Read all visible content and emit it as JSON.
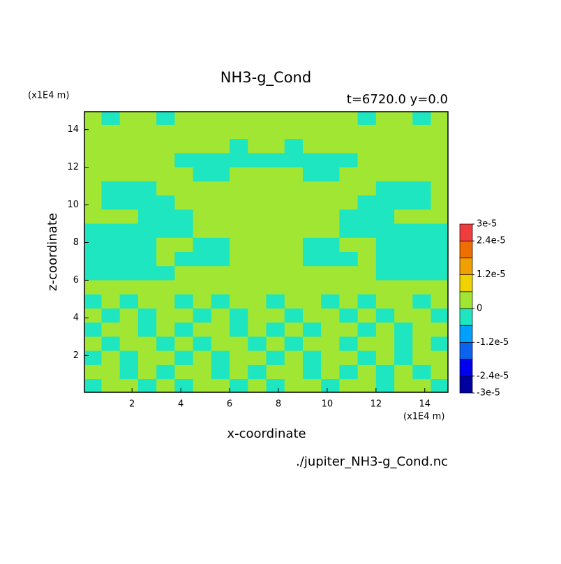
{
  "chart_data": {
    "type": "contour",
    "title": "NH3-g_Cond",
    "subtitle": "t=6720.0 y=0.0",
    "x_label": "x-coordinate",
    "y_label": "z-coordinate",
    "x_unit": "(x1E4 m)",
    "y_unit": "(x1E4 m)",
    "source": "./jupiter_NH3-g_Cond.nc",
    "xlim": [
      0.05,
      14.95
    ],
    "ylim": [
      0.05,
      14.95
    ],
    "xticks": [
      2,
      4,
      6,
      8,
      10,
      12,
      14
    ],
    "yticks": [
      2,
      4,
      6,
      8,
      10,
      12,
      14
    ],
    "x": [
      0.375,
      1.125,
      1.875,
      2.625,
      3.375,
      4.125,
      4.875,
      5.625,
      6.375,
      7.125,
      7.875,
      8.625,
      9.375,
      10.125,
      10.875,
      11.625,
      12.375,
      13.125,
      13.875,
      14.625
    ],
    "z": [
      14.625,
      13.875,
      13.125,
      12.375,
      11.625,
      10.875,
      10.125,
      9.375,
      8.625,
      7.875,
      7.125,
      6.375,
      5.625,
      4.875,
      4.125,
      3.375,
      2.625,
      1.875,
      1.125,
      0.375
    ],
    "levels": [
      -3e-05,
      -2.4e-05,
      -1.8e-05,
      -1.2e-05,
      -6e-06,
      0,
      6e-06,
      1.2e-05,
      1.8e-05,
      2.4e-05,
      3e-05
    ],
    "colors": [
      "#0000a0",
      "#0000f0",
      "#0a64f0",
      "#00a0ff",
      "#1ee6c0",
      "#a0e632",
      "#f0d200",
      "#f0a000",
      "#f06e00",
      "#f03c3c"
    ],
    "cbar_ticks": [
      {
        "value": 3e-05,
        "label": "3e-5"
      },
      {
        "value": 2.4e-05,
        "label": "2.4e-5"
      },
      {
        "value": 1.2e-05,
        "label": "1.2e-5"
      },
      0,
      {
        "value": -1.2e-05,
        "label": "-1.2e-5"
      },
      {
        "value": -2.4e-05,
        "label": "-2.4e-5"
      },
      {
        "value": -3e-05,
        "label": "-3e-5"
      }
    ],
    "values": [
      [
        3e-06,
        -3e-06,
        3e-06,
        3e-06,
        -3e-06,
        3e-06,
        3e-06,
        3e-06,
        3e-06,
        3e-06,
        3e-06,
        3e-06,
        3e-06,
        3e-06,
        3e-06,
        -3e-06,
        3e-06,
        3e-06,
        -3e-06,
        3e-06
      ],
      [
        3e-06,
        3e-06,
        3e-06,
        3e-06,
        3e-06,
        3e-06,
        3e-06,
        3e-06,
        3e-06,
        3e-06,
        3e-06,
        3e-06,
        3e-06,
        3e-06,
        3e-06,
        3e-06,
        3e-06,
        3e-06,
        3e-06,
        3e-06
      ],
      [
        3e-06,
        3e-06,
        3e-06,
        3e-06,
        3e-06,
        3e-06,
        3e-06,
        3e-06,
        -3e-06,
        3e-06,
        3e-06,
        -3e-06,
        3e-06,
        3e-06,
        3e-06,
        3e-06,
        3e-06,
        3e-06,
        3e-06,
        3e-06
      ],
      [
        3e-06,
        3e-06,
        3e-06,
        3e-06,
        3e-06,
        -3e-06,
        -3e-06,
        -3e-06,
        -3e-06,
        -3e-06,
        -3e-06,
        -3e-06,
        -3e-06,
        -3e-06,
        -3e-06,
        3e-06,
        3e-06,
        3e-06,
        3e-06,
        3e-06
      ],
      [
        3e-06,
        3e-06,
        3e-06,
        3e-06,
        3e-06,
        3e-06,
        -3e-06,
        -3e-06,
        3e-06,
        3e-06,
        3e-06,
        3e-06,
        -3e-06,
        -3e-06,
        3e-06,
        3e-06,
        3e-06,
        3e-06,
        3e-06,
        3e-06
      ],
      [
        3e-06,
        -3e-06,
        -3e-06,
        -3e-06,
        3e-06,
        3e-06,
        3e-06,
        3e-06,
        3e-06,
        3e-06,
        3e-06,
        3e-06,
        3e-06,
        3e-06,
        3e-06,
        3e-06,
        -3e-06,
        -3e-06,
        -3e-06,
        3e-06
      ],
      [
        3e-06,
        -3e-06,
        -3e-06,
        -3e-06,
        -3e-06,
        3e-06,
        3e-06,
        3e-06,
        3e-06,
        3e-06,
        3e-06,
        3e-06,
        3e-06,
        3e-06,
        3e-06,
        -3e-06,
        -3e-06,
        -3e-06,
        -3e-06,
        3e-06
      ],
      [
        3e-06,
        3e-06,
        3e-06,
        -3e-06,
        -3e-06,
        -3e-06,
        3e-06,
        3e-06,
        3e-06,
        3e-06,
        3e-06,
        3e-06,
        3e-06,
        3e-06,
        -3e-06,
        -3e-06,
        -3e-06,
        3e-06,
        3e-06,
        3e-06
      ],
      [
        -3e-06,
        -3e-06,
        -3e-06,
        -3e-06,
        -3e-06,
        -3e-06,
        3e-06,
        3e-06,
        3e-06,
        3e-06,
        3e-06,
        3e-06,
        3e-06,
        3e-06,
        -3e-06,
        -3e-06,
        -3e-06,
        -3e-06,
        -3e-06,
        -3e-06
      ],
      [
        -3e-06,
        -3e-06,
        -3e-06,
        -3e-06,
        3e-06,
        3e-06,
        -3e-06,
        -3e-06,
        3e-06,
        3e-06,
        3e-06,
        3e-06,
        -3e-06,
        -3e-06,
        3e-06,
        3e-06,
        -3e-06,
        -3e-06,
        -3e-06,
        -3e-06
      ],
      [
        -3e-06,
        -3e-06,
        -3e-06,
        -3e-06,
        3e-06,
        -3e-06,
        -3e-06,
        -3e-06,
        3e-06,
        3e-06,
        3e-06,
        3e-06,
        -3e-06,
        -3e-06,
        -3e-06,
        3e-06,
        -3e-06,
        -3e-06,
        -3e-06,
        -3e-06
      ],
      [
        -3e-06,
        -3e-06,
        -3e-06,
        -3e-06,
        -3e-06,
        3e-06,
        3e-06,
        3e-06,
        3e-06,
        3e-06,
        3e-06,
        3e-06,
        3e-06,
        3e-06,
        3e-06,
        3e-06,
        -3e-06,
        -3e-06,
        -3e-06,
        -3e-06
      ],
      [
        3e-06,
        3e-06,
        3e-06,
        3e-06,
        3e-06,
        3e-06,
        3e-06,
        3e-06,
        3e-06,
        3e-06,
        3e-06,
        3e-06,
        3e-06,
        3e-06,
        3e-06,
        3e-06,
        3e-06,
        3e-06,
        3e-06,
        3e-06
      ],
      [
        -3e-06,
        3e-06,
        -3e-06,
        3e-06,
        3e-06,
        -3e-06,
        3e-06,
        -3e-06,
        3e-06,
        3e-06,
        -3e-06,
        3e-06,
        3e-06,
        -3e-06,
        3e-06,
        -3e-06,
        3e-06,
        3e-06,
        -3e-06,
        3e-06
      ],
      [
        3e-06,
        -3e-06,
        3e-06,
        -3e-06,
        3e-06,
        3e-06,
        -3e-06,
        3e-06,
        -3e-06,
        3e-06,
        3e-06,
        -3e-06,
        3e-06,
        3e-06,
        -3e-06,
        3e-06,
        -3e-06,
        3e-06,
        3e-06,
        -3e-06
      ],
      [
        -3e-06,
        3e-06,
        3e-06,
        -3e-06,
        3e-06,
        -3e-06,
        3e-06,
        3e-06,
        -3e-06,
        3e-06,
        -3e-06,
        3e-06,
        -3e-06,
        3e-06,
        3e-06,
        -3e-06,
        3e-06,
        -3e-06,
        3e-06,
        3e-06
      ],
      [
        3e-06,
        -3e-06,
        3e-06,
        3e-06,
        -3e-06,
        3e-06,
        -3e-06,
        3e-06,
        3e-06,
        -3e-06,
        3e-06,
        -3e-06,
        3e-06,
        3e-06,
        -3e-06,
        3e-06,
        3e-06,
        -3e-06,
        3e-06,
        -3e-06
      ],
      [
        -3e-06,
        3e-06,
        -3e-06,
        3e-06,
        3e-06,
        -3e-06,
        3e-06,
        -3e-06,
        3e-06,
        3e-06,
        -3e-06,
        3e-06,
        -3e-06,
        3e-06,
        3e-06,
        -3e-06,
        3e-06,
        -3e-06,
        3e-06,
        3e-06
      ],
      [
        3e-06,
        3e-06,
        -3e-06,
        3e-06,
        -3e-06,
        3e-06,
        3e-06,
        -3e-06,
        3e-06,
        -3e-06,
        3e-06,
        3e-06,
        -3e-06,
        3e-06,
        -3e-06,
        3e-06,
        -3e-06,
        3e-06,
        -3e-06,
        3e-06
      ],
      [
        -3e-06,
        3e-06,
        3e-06,
        -3e-06,
        3e-06,
        -3e-06,
        3e-06,
        3e-06,
        -3e-06,
        3e-06,
        -3e-06,
        3e-06,
        3e-06,
        -3e-06,
        3e-06,
        3e-06,
        -3e-06,
        3e-06,
        3e-06,
        -3e-06
      ]
    ]
  }
}
